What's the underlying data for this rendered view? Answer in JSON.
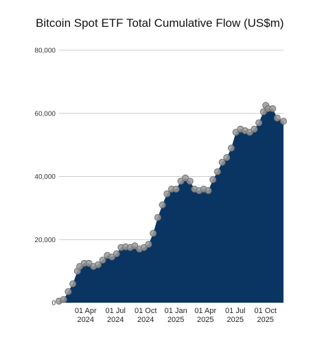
{
  "chart_data": {
    "type": "area",
    "title": "Bitcoin Spot ETF Total Cumulative Flow (US$m)",
    "xlabel": "",
    "ylabel": "",
    "ylim": [
      0,
      80000
    ],
    "y_ticks": [
      "0",
      "20,000",
      "40,000",
      "60,000",
      "80,000"
    ],
    "y_tick_values": [
      0,
      20000,
      40000,
      60000,
      80000
    ],
    "x_range": [
      "2024-01-11",
      "2025-11-25"
    ],
    "x_ticks": [
      {
        "date": "2024-04-01",
        "line1": "01 Apr",
        "line2": "2024"
      },
      {
        "date": "2024-07-01",
        "line1": "01 Jul",
        "line2": "2024"
      },
      {
        "date": "2024-10-01",
        "line1": "01 Oct",
        "line2": "2024"
      },
      {
        "date": "2025-01-01",
        "line1": "01 Jan",
        "line2": "2025"
      },
      {
        "date": "2025-04-01",
        "line1": "01 Apr",
        "line2": "2025"
      },
      {
        "date": "2025-07-01",
        "line1": "01 Jul",
        "line2": "2025"
      },
      {
        "date": "2025-10-01",
        "line1": "01 Oct",
        "line2": "2025"
      }
    ],
    "grid": true,
    "colors": {
      "fill": "#0a3562",
      "marker": "#9a9a9a",
      "grid": "#cccccc"
    },
    "series": [
      {
        "x": [
          "2024-01-11",
          "2024-01-25",
          "2024-02-08",
          "2024-02-22",
          "2024-03-07",
          "2024-03-14",
          "2024-03-28",
          "2024-04-11",
          "2024-04-25",
          "2024-05-09",
          "2024-05-23",
          "2024-06-06",
          "2024-06-20",
          "2024-07-04",
          "2024-07-18",
          "2024-08-01",
          "2024-08-15",
          "2024-08-29",
          "2024-09-12",
          "2024-09-26",
          "2024-10-10",
          "2024-10-24",
          "2024-11-07",
          "2024-11-21",
          "2024-12-05",
          "2024-12-19",
          "2025-01-02",
          "2025-01-16",
          "2025-01-30",
          "2025-02-13",
          "2025-02-27",
          "2025-03-13",
          "2025-03-27",
          "2025-04-10",
          "2025-04-24",
          "2025-05-08",
          "2025-05-22",
          "2025-06-05",
          "2025-06-19",
          "2025-07-03",
          "2025-07-17",
          "2025-07-31",
          "2025-08-14",
          "2025-08-28",
          "2025-09-11",
          "2025-09-25",
          "2025-10-02",
          "2025-10-09",
          "2025-10-23",
          "2025-11-06",
          "2025-11-25"
        ],
        "values": [
          500,
          1000,
          3500,
          6000,
          10000,
          11500,
          12500,
          12500,
          11500,
          12000,
          13500,
          15000,
          14500,
          15500,
          17500,
          17700,
          17500,
          18000,
          17000,
          17500,
          18500,
          22000,
          27000,
          31000,
          34500,
          36000,
          36000,
          38500,
          39500,
          38500,
          36000,
          35500,
          36000,
          35500,
          39000,
          41500,
          44500,
          46000,
          49000,
          54000,
          55000,
          54500,
          54000,
          55000,
          57000,
          60500,
          62500,
          61500,
          61500,
          58500,
          57500
        ]
      }
    ]
  }
}
